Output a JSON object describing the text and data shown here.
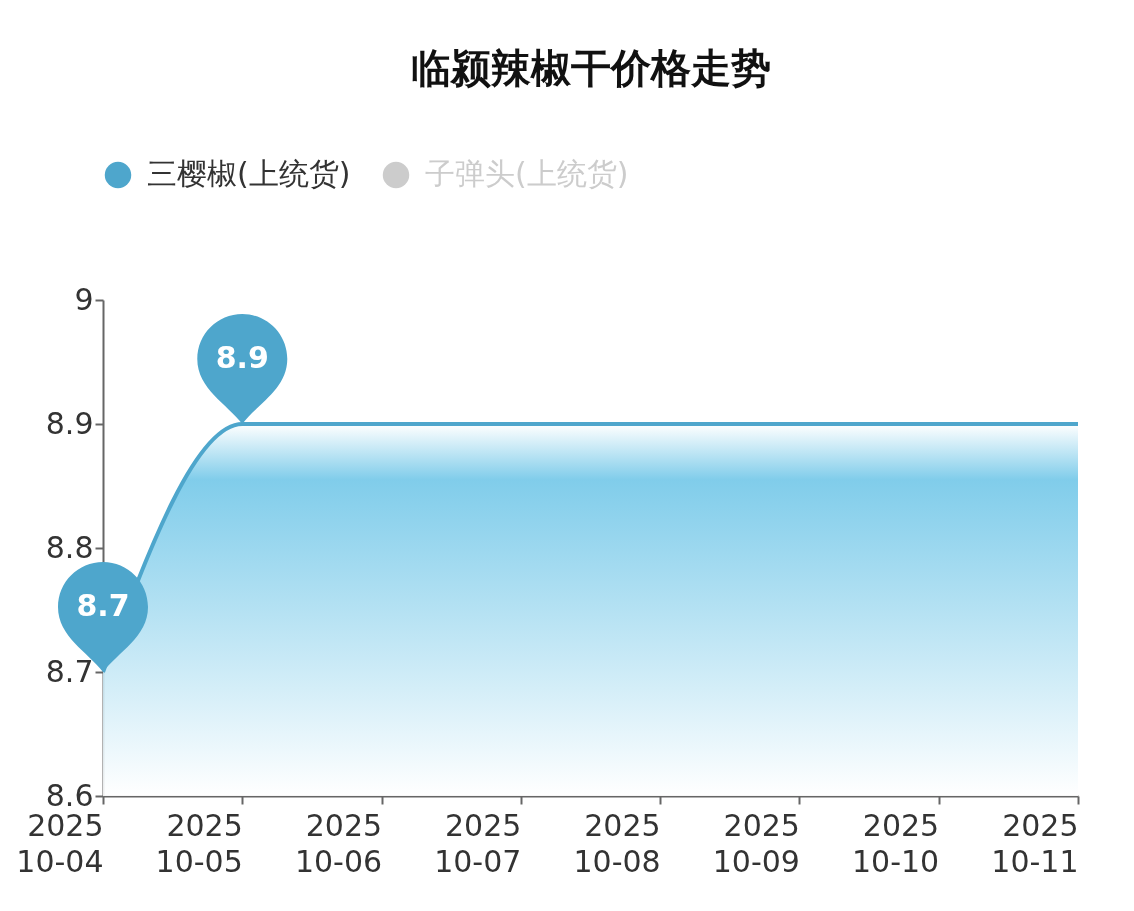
{
  "chart_data": {
    "type": "area",
    "title": "临颍辣椒干价格走势",
    "categories": [
      "2025\n10-04",
      "2025\n10-05",
      "2025\n10-06",
      "2025\n10-07",
      "2025\n10-08",
      "2025\n10-09",
      "2025\n10-10",
      "2025\n10-11"
    ],
    "series": [
      {
        "name": "三樱椒(上统货)",
        "color": "#4ea6cc",
        "values": [
          8.7,
          8.9,
          8.9,
          8.9,
          8.9,
          8.9,
          8.9,
          8.9
        ],
        "value_labels": [
          "8.7",
          "8.9",
          null,
          null,
          null,
          null,
          null,
          null
        ]
      },
      {
        "name": "子弹头(上统货)",
        "color": "#cccccc",
        "values": [
          null,
          null,
          null,
          null,
          null,
          null,
          null,
          null
        ]
      }
    ],
    "ylim": [
      8.6,
      9
    ],
    "yticks": [
      8.6,
      8.7,
      8.8,
      8.9,
      9
    ],
    "grid": false,
    "legend": "top"
  }
}
